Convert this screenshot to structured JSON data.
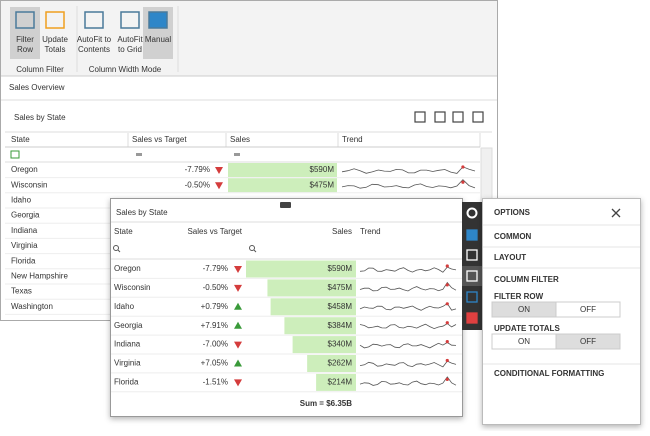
{
  "ribbon": {
    "buttons": [
      [
        "Filter",
        "Row"
      ],
      [
        "Update",
        "Totals"
      ],
      [
        "AutoFit to",
        "Contents"
      ],
      [
        "AutoFit",
        "to Grid"
      ],
      [
        "Manual"
      ]
    ],
    "groups": [
      "Column Filter",
      "Column Width Mode"
    ]
  },
  "page_title": "Sales Overview",
  "background_grid": {
    "title": "Sales by State",
    "columns": [
      "State",
      "Sales vs Target",
      "Sales",
      "Trend"
    ],
    "rows": [
      {
        "state": "Oregon",
        "vs_target": "-7.79%",
        "sales": "$590M"
      },
      {
        "state": "Wisconsin",
        "vs_target": "-0.50%",
        "sales": "$475M"
      },
      {
        "state": "Idaho"
      },
      {
        "state": "Georgia"
      },
      {
        "state": "Indiana"
      },
      {
        "state": "Virginia"
      },
      {
        "state": "Florida"
      },
      {
        "state": "New Hampshire"
      },
      {
        "state": "Texas"
      },
      {
        "state": "Washington"
      }
    ]
  },
  "dashboard_item": {
    "title": "Sales by State",
    "columns": [
      "State",
      "Sales vs Target",
      "Sales",
      "Trend"
    ],
    "rows": [
      {
        "state": "Oregon",
        "vs_target": "-7.79%",
        "sales": 590,
        "sales_label": "$590M"
      },
      {
        "state": "Wisconsin",
        "vs_target": "-0.50%",
        "sales": 475,
        "sales_label": "$475M"
      },
      {
        "state": "Idaho",
        "vs_target": "+0.79%",
        "sales": 458,
        "sales_label": "$458M"
      },
      {
        "state": "Georgia",
        "vs_target": "+7.91%",
        "sales": 384,
        "sales_label": "$384M"
      },
      {
        "state": "Indiana",
        "vs_target": "-7.00%",
        "sales": 340,
        "sales_label": "$340M"
      },
      {
        "state": "Virginia",
        "vs_target": "+7.05%",
        "sales": 262,
        "sales_label": "$262M"
      },
      {
        "state": "Florida",
        "vs_target": "-1.51%",
        "sales": 214,
        "sales_label": "$214M"
      }
    ],
    "total": "Sum = $6.35B"
  },
  "options": {
    "title": "OPTIONS",
    "sections": [
      "COMMON",
      "LAYOUT"
    ],
    "group": "COLUMN FILTER",
    "toggles": [
      {
        "label": "FILTER ROW",
        "on": "ON",
        "off": "OFF",
        "selected": "on"
      },
      {
        "label": "UPDATE TOTALS",
        "on": "ON",
        "off": "OFF",
        "selected": "off"
      }
    ],
    "footer_section": "CONDITIONAL FORMATTING"
  }
}
